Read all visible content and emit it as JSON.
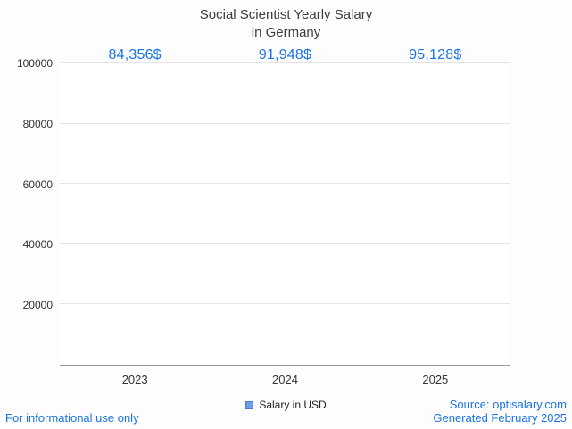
{
  "title": "Social Scientist Yearly Salary\nin Germany",
  "legend": {
    "label": "Salary in USD"
  },
  "footer": {
    "left": "For informational use only",
    "right_line1": "Source: optisalary.com",
    "right_line2": "Generated February 2025"
  },
  "chart_data": {
    "type": "bar",
    "title": "Social Scientist Yearly Salary in Germany",
    "categories": [
      "2023",
      "2024",
      "2025"
    ],
    "values": [
      84356,
      91948,
      95128
    ],
    "value_labels": [
      "84,356$",
      "91,948$",
      "95,128$"
    ],
    "series_name": "Salary in USD",
    "xlabel": "",
    "ylabel": "",
    "ylim": [
      0,
      100000
    ],
    "yticks": [
      20000,
      40000,
      60000,
      80000,
      100000
    ],
    "grid": true,
    "legend_position": "bottom",
    "accent_color": "#1a73e8",
    "bar_edge_color": "#4E93E0",
    "bar_center_color": "#FFFFFF",
    "legend_marker_color": "#6d9eeb"
  }
}
